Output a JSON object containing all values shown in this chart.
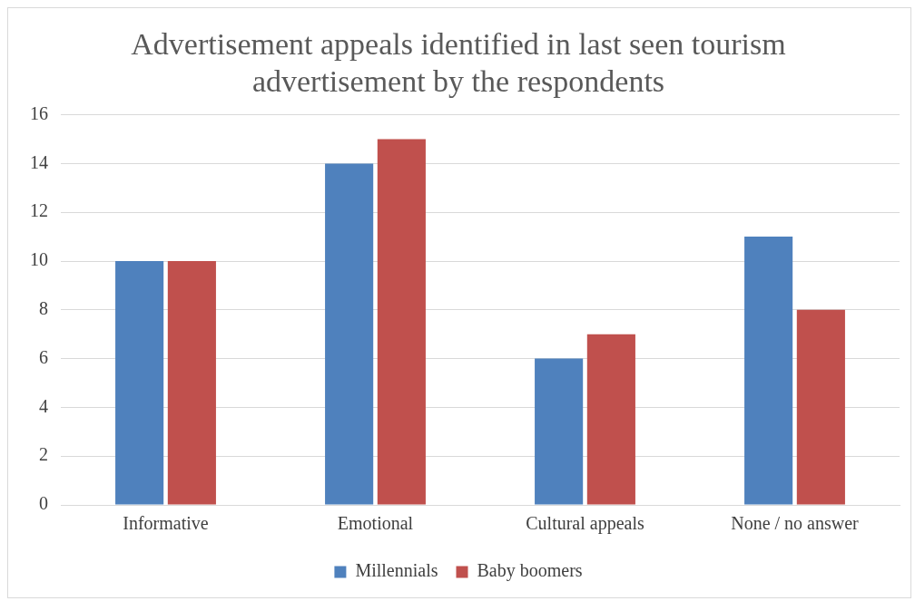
{
  "chart_data": {
    "type": "bar",
    "title": "Advertisement appeals identified in last seen tourism advertisement by the respondents",
    "categories": [
      "Informative",
      "Emotional",
      "Cultural appeals",
      "None / no answer"
    ],
    "series": [
      {
        "name": "Millennials",
        "color": "#4f81bd",
        "values": [
          10,
          14,
          6,
          11
        ]
      },
      {
        "name": "Baby boomers",
        "color": "#c0504d",
        "values": [
          10,
          15,
          7,
          8
        ]
      }
    ],
    "ylim": [
      0,
      16
    ],
    "yticks": [
      0,
      2,
      4,
      6,
      8,
      10,
      12,
      14,
      16
    ],
    "grid": "y",
    "legend": "bottom"
  }
}
